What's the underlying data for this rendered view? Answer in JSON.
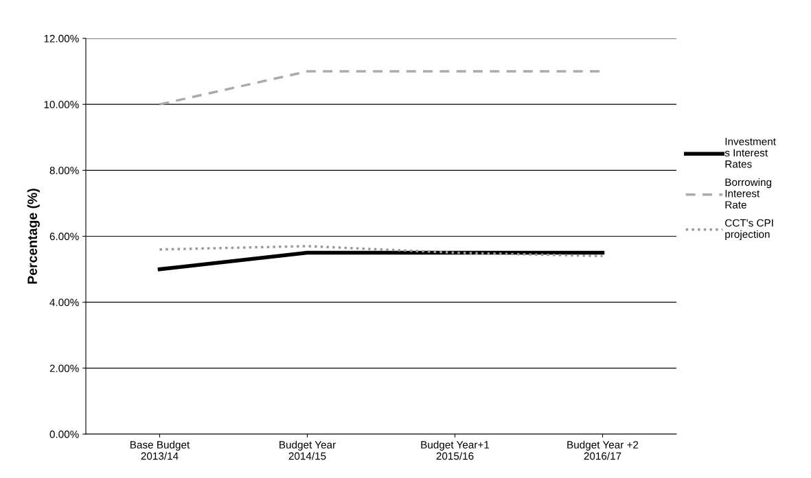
{
  "chart_data": {
    "type": "line",
    "ylabel": "Percentage (%)",
    "categories": [
      "Base Budget\n2013/14",
      "Budget Year\n2014/15",
      "Budget Year+1\n2015/16",
      "Budget Year +2\n2016/17"
    ],
    "series": [
      {
        "name": "Investment\ns Interest\nRates",
        "color": "#000000",
        "values": [
          5.0,
          5.5,
          5.5,
          5.5
        ],
        "line_style": "solid"
      },
      {
        "name": "Borrowing\nInterest\nRate",
        "color": "#aaaaaa",
        "values": [
          10.0,
          11.0,
          11.0,
          11.0
        ],
        "line_style": "dashed"
      },
      {
        "name": "CCT's CPI\nprojection",
        "color": "#999999",
        "values": [
          5.6,
          5.7,
          5.5,
          5.4
        ],
        "line_style": "dotted"
      }
    ],
    "ylim": [
      0,
      12
    ],
    "yticks": [
      {
        "value": 0,
        "label": "0.00%"
      },
      {
        "value": 2,
        "label": "2.00%"
      },
      {
        "value": 4,
        "label": "4.00%"
      },
      {
        "value": 6,
        "label": "6.00%"
      },
      {
        "value": 8,
        "label": "8.00%"
      },
      {
        "value": 10,
        "label": "10.00%"
      },
      {
        "value": 12,
        "label": "12.00%"
      }
    ],
    "grid": "y",
    "legend": "right",
    "marker": "none"
  }
}
